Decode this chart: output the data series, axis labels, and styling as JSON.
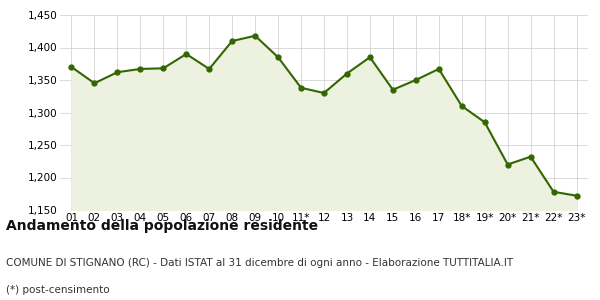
{
  "x_labels": [
    "01",
    "02",
    "03",
    "04",
    "05",
    "06",
    "07",
    "08",
    "09",
    "10",
    "11*",
    "12",
    "13",
    "14",
    "15",
    "16",
    "17",
    "18*",
    "19*",
    "20*",
    "21*",
    "22*",
    "23*"
  ],
  "y_values": [
    1370,
    1345,
    1362,
    1367,
    1368,
    1390,
    1367,
    1410,
    1418,
    1385,
    1338,
    1330,
    1360,
    1385,
    1335,
    1350,
    1367,
    1310,
    1285,
    1220,
    1232,
    1178,
    1172
  ],
  "line_color": "#336600",
  "fill_color": "#edf2e0",
  "marker_color": "#336600",
  "background_color": "#ffffff",
  "grid_color": "#cccccc",
  "ylim": [
    1150,
    1450
  ],
  "yticks": [
    1150,
    1200,
    1250,
    1300,
    1350,
    1400,
    1450
  ],
  "title": "Andamento della popolazione residente",
  "subtitle": "COMUNE DI STIGNANO (RC) - Dati ISTAT al 31 dicembre di ogni anno - Elaborazione TUTTITALIA.IT",
  "footnote": "(*) post-censimento",
  "title_fontsize": 10,
  "subtitle_fontsize": 7.5,
  "footnote_fontsize": 7.5,
  "tick_fontsize": 7.5,
  "line_width": 1.5,
  "marker_size": 3.5
}
